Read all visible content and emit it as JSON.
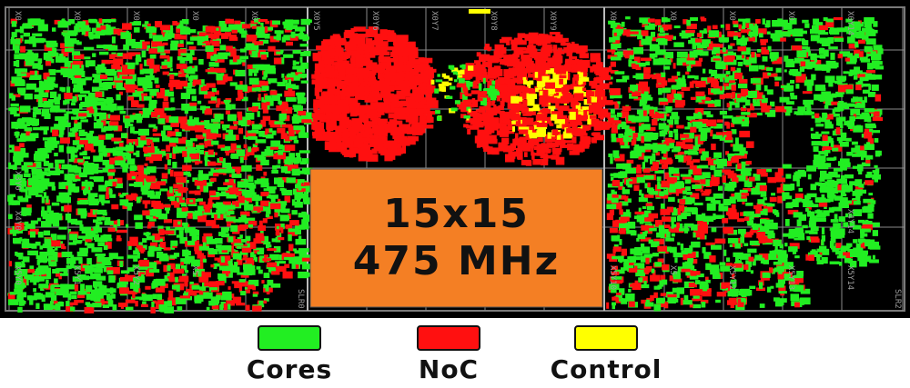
{
  "overlay": {
    "line1": "15x15",
    "line2": "475 MHz"
  },
  "colors": {
    "background": "#000000",
    "cores": "#22ee22",
    "noc": "#ff1010",
    "control": "#ffff00",
    "block": "#f47f24",
    "grid": "#8a8a8a"
  },
  "grid_labels": {
    "top": [
      "X0",
      "X0",
      "X0",
      "X0",
      "X0",
      "X0Y5",
      "X0Y6",
      "X0Y7",
      "X0Y8",
      "X0Y9",
      "X0",
      "X0",
      "X0",
      "X0",
      "X0Y14"
    ],
    "bottom": [
      "X5Y0",
      "X5Y1",
      "X5Y2",
      "X5",
      "X5Y10",
      "X5",
      "X5Y12",
      "X5Y13",
      "X5Y14"
    ],
    "left_mid": [
      "X3Y0",
      "X4Y0"
    ],
    "right_mid": [
      "X4Y14"
    ],
    "slr_left": "SLR0",
    "slr_right": "SLR2"
  },
  "legend": [
    {
      "label": "Cores",
      "color": "#22ee22"
    },
    {
      "label": "NoC",
      "color": "#ff1010"
    },
    {
      "label": "Control",
      "color": "#ffff00"
    }
  ]
}
